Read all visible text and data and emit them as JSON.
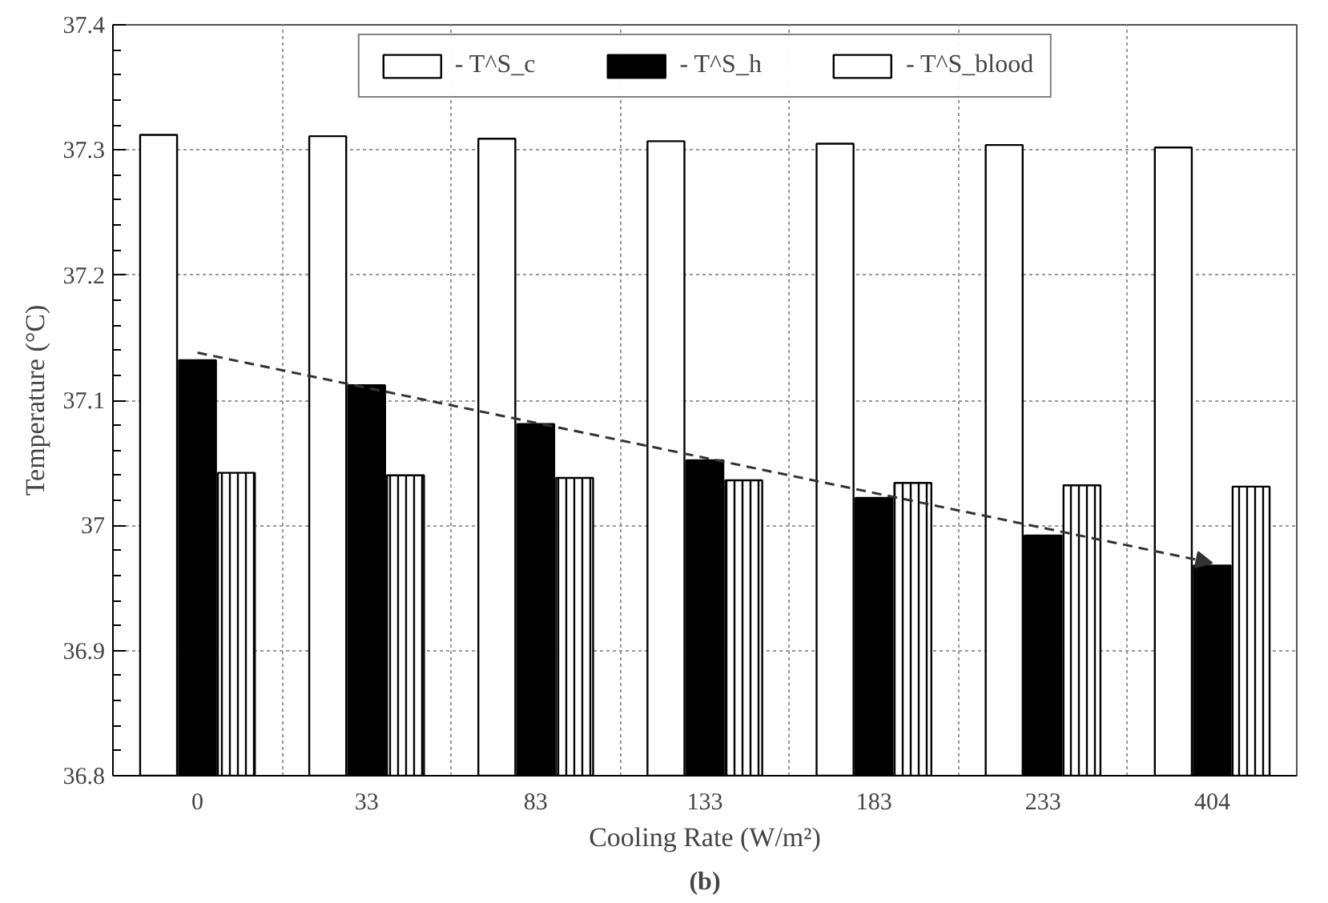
{
  "chart_data": {
    "type": "bar",
    "xlabel": "Cooling Rate (W/m²)",
    "ylabel": "Temperature (°C)",
    "annotations": [
      "(b)"
    ],
    "categories": [
      "0",
      "33",
      "83",
      "133",
      "183",
      "233",
      "404"
    ],
    "series": [
      {
        "name": "- T^S_c",
        "color": "#ffffff",
        "values": [
          37.312,
          37.311,
          37.309,
          37.307,
          37.305,
          37.304,
          37.302
        ]
      },
      {
        "name": "- T^S_h",
        "color": "#000000",
        "values": [
          37.132,
          37.112,
          37.081,
          37.052,
          37.022,
          36.992,
          36.968
        ]
      },
      {
        "name": "- T^S_blood",
        "color": "#ffffff",
        "values": [
          37.042,
          37.04,
          37.038,
          37.036,
          37.034,
          37.032,
          37.031
        ]
      },
      {
        "type": "line",
        "color": "#333333",
        "line_style": "dashed",
        "x": [
          "0",
          "404"
        ],
        "values": [
          37.138,
          36.97
        ]
      }
    ],
    "ylim": [
      36.8,
      37.4
    ],
    "yticks": [
      36.8,
      36.9,
      37,
      37.1,
      37.2,
      37.3,
      37.4
    ],
    "grid": true,
    "legend": "top"
  }
}
